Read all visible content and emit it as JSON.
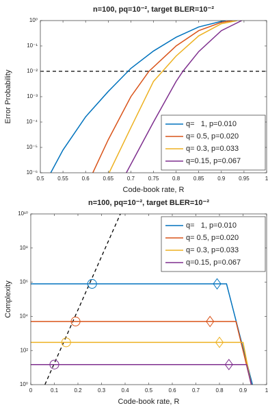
{
  "chart_data": [
    {
      "type": "line",
      "title": "n=100, pq=10⁻², target BLER=10⁻²",
      "xlabel": "Code-book rate, R",
      "ylabel": "Error Probability",
      "xlim": [
        0.5,
        1
      ],
      "xticks": [
        0.5,
        0.55,
        0.6,
        0.65,
        0.7,
        0.75,
        0.8,
        0.85,
        0.9,
        0.95,
        1
      ],
      "ylim": [
        1e-06,
        1
      ],
      "yscale": "log",
      "yticks": [
        {
          "value": 1e-06,
          "label": "10⁻⁶"
        },
        {
          "value": 1e-05,
          "label": "10⁻⁵"
        },
        {
          "value": 0.0001,
          "label": "10⁻⁴"
        },
        {
          "value": 0.001,
          "label": "10⁻³"
        },
        {
          "value": 0.01,
          "label": "10⁻²"
        },
        {
          "value": 0.1,
          "label": "10⁻¹"
        },
        {
          "value": 1,
          "label": "10⁰"
        }
      ],
      "hline": 0.01,
      "legend": "lower right",
      "series": [
        {
          "name": "q=   1, p=0.010",
          "color": "#0072BD",
          "x": [
            0.523,
            0.55,
            0.6,
            0.65,
            0.7,
            0.75,
            0.8,
            0.85,
            0.9,
            0.91
          ],
          "values": [
            1e-06,
            7.9e-06,
            0.00016,
            0.0016,
            0.013,
            0.063,
            0.22,
            0.56,
            0.93,
            1
          ]
        },
        {
          "name": "q= 0.5, p=0.020",
          "color": "#D95319",
          "x": [
            0.616,
            0.65,
            0.7,
            0.74,
            0.8,
            0.85,
            0.9,
            0.925
          ],
          "values": [
            1e-06,
            2e-05,
            0.001,
            0.01,
            0.1,
            0.4,
            0.85,
            1
          ]
        },
        {
          "name": "q= 0.3, p=0.033",
          "color": "#EDB120",
          "x": [
            0.652,
            0.7,
            0.75,
            0.77,
            0.8,
            0.85,
            0.9,
            0.935
          ],
          "values": [
            1e-06,
            6e-05,
            0.004,
            0.01,
            0.04,
            0.25,
            0.75,
            1
          ]
        },
        {
          "name": "q=0.15, p=0.067",
          "color": "#7E2F8E",
          "x": [
            0.69,
            0.75,
            0.8,
            0.815,
            0.85,
            0.9,
            0.945
          ],
          "values": [
            1e-06,
            0.0001,
            0.004,
            0.01,
            0.06,
            0.4,
            1
          ]
        }
      ]
    },
    {
      "type": "line",
      "title": "n=100, pq=10⁻², target BLER=10⁻²",
      "xlabel": "Code-book rate, R",
      "ylabel": "Complexity",
      "xlim": [
        0,
        1
      ],
      "xticks": [
        0,
        0.1,
        0.2,
        0.3,
        0.4,
        0.5,
        0.6,
        0.7,
        0.8,
        0.9,
        1
      ],
      "ylim": [
        1,
        10000000000
      ],
      "yscale": "log",
      "yticks": [
        {
          "value": 1,
          "label": "10⁰"
        },
        {
          "value": 100,
          "label": "10²"
        },
        {
          "value": 10000,
          "label": "10⁴"
        },
        {
          "value": 1000000,
          "label": "10⁶"
        },
        {
          "value": 100000000,
          "label": "10⁸"
        },
        {
          "value": 10000000000,
          "label": "10¹⁰"
        }
      ],
      "reference_line": {
        "x": [
          0.06,
          0.38
        ],
        "values": [
          1,
          10000000000
        ]
      },
      "legend": "upper right",
      "series": [
        {
          "name": "q=   1, p=0.010",
          "color": "#0072BD",
          "x": [
            0,
            0.83,
            0.94
          ],
          "values": [
            800000,
            800000,
            1
          ],
          "markers": [
            {
              "shape": "circle",
              "x": 0.26,
              "value": 800000
            },
            {
              "shape": "diamond",
              "x": 0.79,
              "value": 800000
            }
          ]
        },
        {
          "name": "q= 0.5, p=0.020",
          "color": "#D95319",
          "x": [
            0,
            0.87,
            0.935
          ],
          "values": [
            5000,
            5000,
            1
          ],
          "markers": [
            {
              "shape": "circle",
              "x": 0.19,
              "value": 5000
            },
            {
              "shape": "diamond",
              "x": 0.76,
              "value": 5000
            }
          ]
        },
        {
          "name": "q= 0.3, p=0.033",
          "color": "#EDB120",
          "x": [
            0,
            0.9,
            0.935
          ],
          "values": [
            300,
            300,
            1
          ],
          "markers": [
            {
              "shape": "circle",
              "x": 0.15,
              "value": 300
            },
            {
              "shape": "diamond",
              "x": 0.8,
              "value": 300
            }
          ]
        },
        {
          "name": "q=0.15, p=0.067",
          "color": "#7E2F8E",
          "x": [
            0,
            0.915,
            0.935
          ],
          "values": [
            15,
            15,
            1
          ],
          "markers": [
            {
              "shape": "circle",
              "x": 0.1,
              "value": 15
            },
            {
              "shape": "diamond",
              "x": 0.84,
              "value": 15
            }
          ]
        }
      ]
    }
  ]
}
